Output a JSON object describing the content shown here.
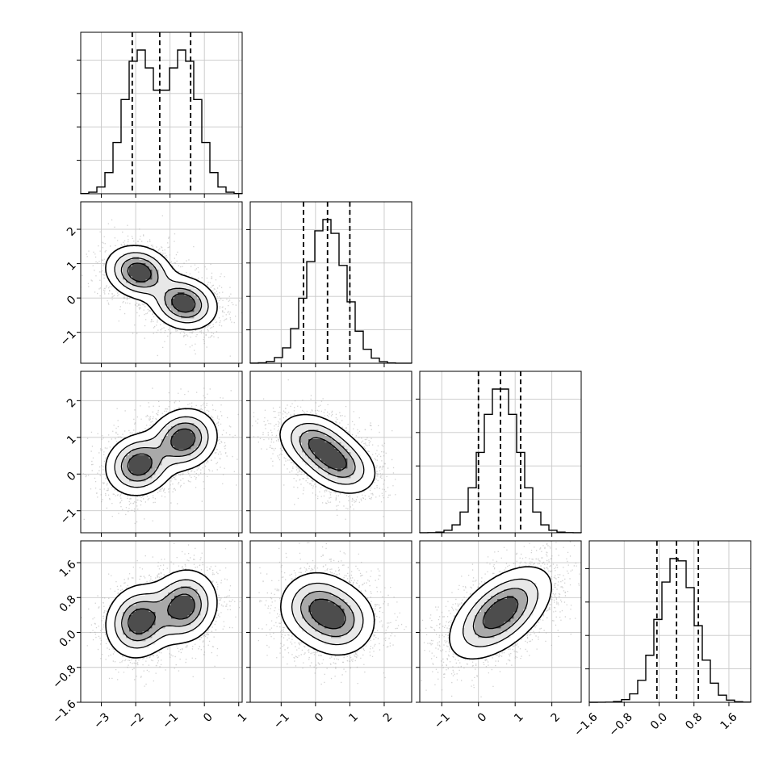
{
  "chart_data": {
    "type": "corner",
    "parameters": [
      {
        "index": 0,
        "range": [
          -3.6,
          1.1
        ],
        "quantiles": [
          -2.1,
          -1.3,
          -0.4
        ],
        "ticks": [
          -3,
          -2,
          -1,
          0,
          1
        ],
        "tick_labels": [
          "−3",
          "−2",
          "−1",
          "0",
          "1"
        ],
        "mixture": [
          {
            "w": 0.5,
            "mu": -1.9,
            "sd": 0.45
          },
          {
            "w": 0.5,
            "mu": -0.6,
            "sd": 0.45
          }
        ]
      },
      {
        "index": 1,
        "range": [
          -1.9,
          2.8
        ],
        "quantiles": [
          -0.35,
          0.35,
          1.0
        ],
        "ticks": [
          -1,
          0,
          1,
          2
        ],
        "tick_labels": [
          "−1",
          "0",
          "1",
          "2"
        ],
        "mixture": [
          {
            "w": 1.0,
            "mu": 0.32,
            "sd": 0.55
          }
        ]
      },
      {
        "index": 2,
        "range": [
          -1.6,
          2.8
        ],
        "quantiles": [
          0.0,
          0.6,
          1.15
        ],
        "ticks": [
          -1,
          0,
          1,
          2
        ],
        "tick_labels": [
          "−1",
          "0",
          "1",
          "2"
        ],
        "mixture": [
          {
            "w": 1.0,
            "mu": 0.6,
            "sd": 0.5
          }
        ]
      },
      {
        "index": 3,
        "range": [
          -1.6,
          2.1
        ],
        "quantiles": [
          -0.05,
          0.4,
          0.9
        ],
        "ticks": [
          -1.6,
          -0.8,
          0.0,
          0.8,
          1.6
        ],
        "tick_labels": [
          "−1.6",
          "−0.8",
          "0.0",
          "0.8",
          "1.6"
        ],
        "mixture": [
          {
            "w": 1.0,
            "mu": 0.42,
            "sd": 0.42
          }
        ]
      }
    ],
    "pairs": [
      {
        "row": 1,
        "col": 0,
        "corr": -0.3,
        "modes": [
          {
            "w": 0.5,
            "mu": [
              -1.9,
              0.75
            ],
            "sd": [
              0.35,
              0.28
            ]
          },
          {
            "w": 0.5,
            "mu": [
              -0.6,
              -0.15
            ],
            "sd": [
              0.35,
              0.28
            ]
          }
        ]
      },
      {
        "row": 2,
        "col": 0,
        "corr": 0.2,
        "modes": [
          {
            "w": 0.5,
            "mu": [
              -1.9,
              0.25
            ],
            "sd": [
              0.35,
              0.3
            ]
          },
          {
            "w": 0.5,
            "mu": [
              -0.6,
              0.95
            ],
            "sd": [
              0.35,
              0.3
            ]
          }
        ]
      },
      {
        "row": 2,
        "col": 1,
        "corr": -0.6,
        "modes": [
          {
            "w": 0.5,
            "mu": [
              0.0,
              0.85
            ],
            "sd": [
              0.4,
              0.3
            ]
          },
          {
            "w": 0.5,
            "mu": [
              0.7,
              0.25
            ],
            "sd": [
              0.4,
              0.3
            ]
          }
        ]
      },
      {
        "row": 3,
        "col": 0,
        "corr": 0.2,
        "modes": [
          {
            "w": 0.5,
            "mu": [
              -1.9,
              0.25
            ],
            "sd": [
              0.35,
              0.3
            ]
          },
          {
            "w": 0.5,
            "mu": [
              -0.6,
              0.6
            ],
            "sd": [
              0.35,
              0.3
            ]
          }
        ]
      },
      {
        "row": 3,
        "col": 1,
        "corr": 0.0,
        "modes": [
          {
            "w": 0.5,
            "mu": [
              0.0,
              0.6
            ],
            "sd": [
              0.4,
              0.3
            ]
          },
          {
            "w": 0.5,
            "mu": [
              0.7,
              0.25
            ],
            "sd": [
              0.4,
              0.3
            ]
          }
        ]
      },
      {
        "row": 3,
        "col": 2,
        "corr": 0.55,
        "modes": [
          {
            "w": 1.0,
            "mu": [
              0.6,
              0.45
            ],
            "sd": [
              0.5,
              0.38
            ]
          }
        ]
      }
    ],
    "grid": true,
    "colors": {
      "points": "#9a9a9a",
      "contour": "#000000",
      "hist": "#000000",
      "grid": "#c8c8c8",
      "fill_dark": "#222222"
    }
  }
}
